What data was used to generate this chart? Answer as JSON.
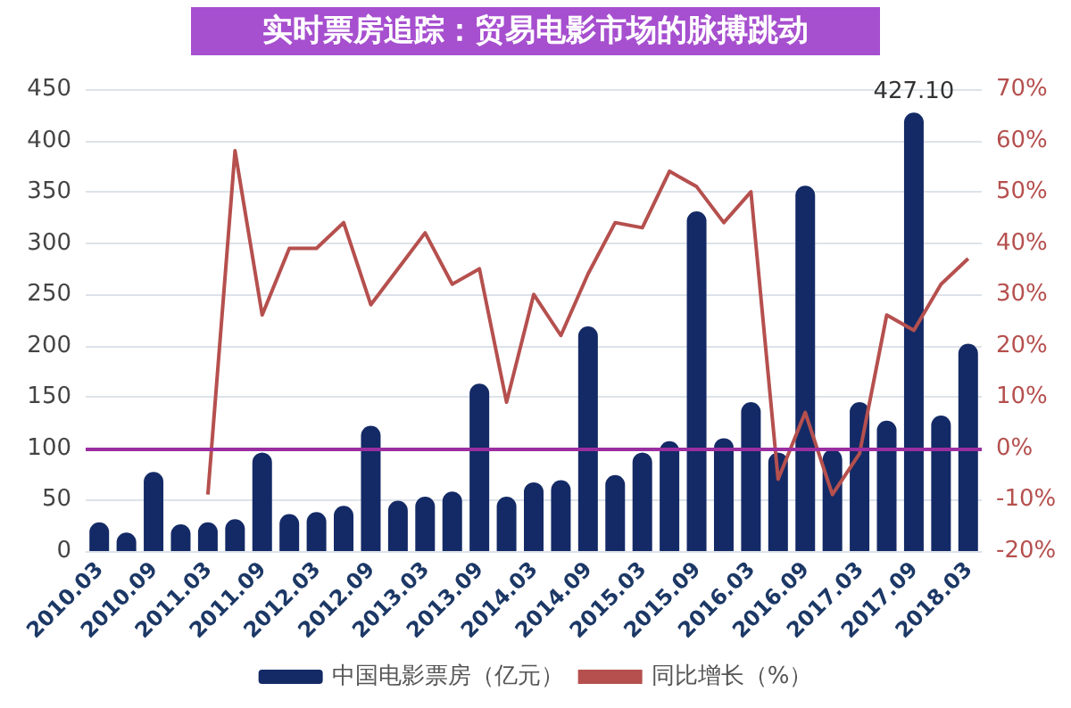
{
  "chart_data": {
    "type": "bar",
    "title": "实时票房追踪：贸易电影市场的脉搏跳动",
    "categories": [
      "2010.03",
      null,
      "2010.09",
      null,
      "2011.03",
      null,
      "2011.09",
      null,
      "2012.03",
      null,
      "2012.09",
      null,
      "2013.03",
      null,
      "2013.09",
      null,
      "2014.03",
      null,
      "2014.09",
      null,
      "2015.03",
      null,
      "2015.09",
      null,
      "2016.03",
      null,
      "2016.09",
      null,
      "2017.03",
      null,
      "2017.09",
      null,
      "2018.03"
    ],
    "series": [
      {
        "name": "中国电影票房（亿元）",
        "color": "#142a66",
        "values": [
          28,
          18,
          77,
          26,
          28,
          31,
          96,
          36,
          38,
          44,
          122,
          49,
          53,
          58,
          163,
          53,
          67,
          69,
          219,
          74,
          96,
          107,
          331,
          110,
          145,
          96,
          356,
          99,
          145,
          127,
          427.1,
          132,
          202
        ],
        "value_labels": [
          null,
          null,
          null,
          null,
          null,
          null,
          null,
          null,
          null,
          null,
          null,
          null,
          null,
          null,
          null,
          null,
          null,
          null,
          null,
          null,
          null,
          null,
          null,
          null,
          null,
          null,
          null,
          null,
          null,
          null,
          "427.10",
          null,
          null
        ]
      },
      {
        "name": "同比增长（%）",
        "type": "line",
        "axis": "y2",
        "color": "#b5504e",
        "values": [
          null,
          null,
          null,
          null,
          -9,
          58,
          26,
          39,
          39,
          44,
          28,
          35,
          42,
          32,
          35,
          9,
          30,
          22,
          34,
          44,
          43,
          54,
          51,
          44,
          50,
          -6,
          7,
          -9,
          -1,
          26,
          23,
          32,
          37
        ]
      }
    ],
    "ylim": [
      0,
      450
    ],
    "yticks": [
      0,
      50,
      100,
      150,
      200,
      250,
      300,
      350,
      400,
      450
    ],
    "y2lim": [
      -20,
      70
    ],
    "y2ticks": [
      {
        "value": -20,
        "label": "-20%"
      },
      {
        "value": -10,
        "label": "-10%"
      },
      {
        "value": 0,
        "label": "0%"
      },
      {
        "value": 10,
        "label": "10%"
      },
      {
        "value": 20,
        "label": "20%"
      },
      {
        "value": 30,
        "label": "30%"
      },
      {
        "value": 40,
        "label": "40%"
      },
      {
        "value": 50,
        "label": "50%"
      },
      {
        "value": 60,
        "label": "60%"
      },
      {
        "value": 70,
        "label": "70%"
      }
    ],
    "ref_lines": [
      {
        "axis": "y2",
        "value": 0,
        "label": null,
        "color": "#9b2ea0"
      }
    ],
    "grid": "y",
    "legend": "bottom",
    "marker": "none"
  }
}
